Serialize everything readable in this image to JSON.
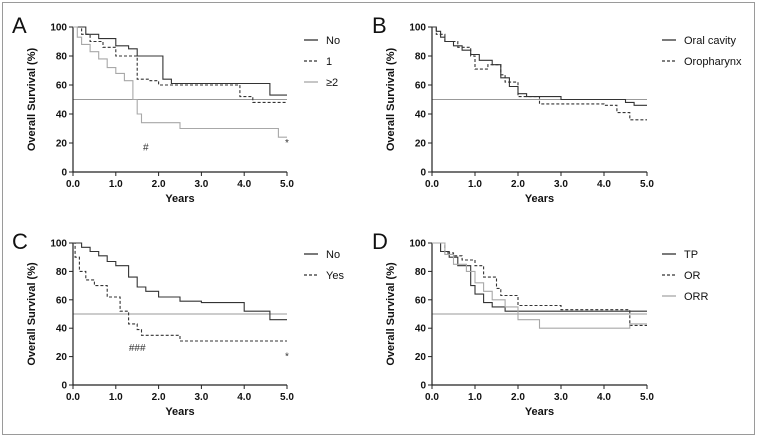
{
  "chart_data": [
    {
      "type": "line",
      "panel": "A",
      "xlabel": "Years",
      "ylabel": "Overall Survival (%)",
      "xlim": [
        0,
        5
      ],
      "ylim": [
        0,
        100
      ],
      "xticks": [
        "0.0",
        "1.0",
        "2.0",
        "3.0",
        "4.0",
        "5.0"
      ],
      "yticks": [
        "0",
        "20",
        "40",
        "60",
        "80",
        "100"
      ],
      "reference_line_y": 50,
      "legend_position": "right",
      "series": [
        {
          "name": "No",
          "color": "#333333",
          "dash": "solid",
          "x": [
            0,
            0.3,
            0.3,
            0.6,
            0.6,
            1.0,
            1.0,
            1.3,
            1.3,
            1.5,
            1.5,
            2.1,
            2.1,
            2.3,
            2.3,
            3.0,
            3.0,
            4.6,
            4.6,
            5.0
          ],
          "y": [
            100,
            100,
            95,
            95,
            92,
            92,
            87,
            87,
            85,
            85,
            80,
            80,
            64,
            64,
            61,
            61,
            61,
            61,
            53,
            53
          ]
        },
        {
          "name": "1",
          "color": "#333333",
          "dash": "dashed",
          "x": [
            0,
            0.2,
            0.2,
            0.4,
            0.4,
            0.7,
            0.7,
            1.0,
            1.0,
            1.5,
            1.5,
            1.8,
            1.8,
            2.0,
            2.0,
            3.0,
            3.0,
            3.9,
            3.9,
            4.2,
            4.2,
            5.0
          ],
          "y": [
            100,
            100,
            95,
            95,
            90,
            90,
            86,
            86,
            80,
            80,
            64,
            64,
            63,
            63,
            60,
            60,
            60,
            60,
            52,
            52,
            48,
            48
          ]
        },
        {
          "name": "≥2",
          "color": "#a8a8a8",
          "dash": "solid",
          "x": [
            0,
            0.1,
            0.1,
            0.2,
            0.2,
            0.4,
            0.4,
            0.6,
            0.6,
            0.8,
            0.8,
            1.0,
            1.0,
            1.2,
            1.2,
            1.4,
            1.4,
            1.5,
            1.5,
            1.6,
            1.6,
            2.5,
            2.5,
            4.8,
            4.8,
            5.0
          ],
          "y": [
            100,
            100,
            93,
            93,
            88,
            88,
            83,
            83,
            78,
            78,
            72,
            72,
            68,
            68,
            63,
            63,
            50,
            50,
            40,
            40,
            34,
            34,
            30,
            30,
            24,
            24
          ]
        }
      ],
      "annotations": [
        {
          "text": "#",
          "x": 1.7,
          "y": 15
        },
        {
          "text": "*",
          "x": 5.0,
          "y": 18
        }
      ]
    },
    {
      "type": "line",
      "panel": "B",
      "xlabel": "Years",
      "ylabel": "Overall Survival (%)",
      "xlim": [
        0,
        5
      ],
      "ylim": [
        0,
        100
      ],
      "xticks": [
        "0.0",
        "1.0",
        "2.0",
        "3.0",
        "4.0",
        "5.0"
      ],
      "yticks": [
        "0",
        "20",
        "40",
        "60",
        "80",
        "100"
      ],
      "reference_line_y": 50,
      "legend_position": "right",
      "series": [
        {
          "name": "Oral cavity",
          "color": "#333333",
          "dash": "solid",
          "x": [
            0,
            0.1,
            0.1,
            0.2,
            0.2,
            0.3,
            0.3,
            0.5,
            0.5,
            0.7,
            0.7,
            0.9,
            0.9,
            1.1,
            1.1,
            1.4,
            1.4,
            1.6,
            1.6,
            1.8,
            1.8,
            2.0,
            2.0,
            2.2,
            2.2,
            3.0,
            3.0,
            4.5,
            4.5,
            4.7,
            4.7,
            5.0
          ],
          "y": [
            100,
            100,
            97,
            97,
            93,
            93,
            90,
            90,
            87,
            87,
            84,
            84,
            81,
            81,
            77,
            77,
            74,
            74,
            65,
            65,
            59,
            59,
            54,
            54,
            52,
            52,
            50,
            50,
            48,
            48,
            46,
            46
          ]
        },
        {
          "name": "Oropharynx",
          "color": "#333333",
          "dash": "dashed",
          "x": [
            0,
            0.1,
            0.1,
            0.3,
            0.3,
            0.6,
            0.6,
            0.9,
            0.9,
            1.0,
            1.0,
            1.3,
            1.3,
            1.6,
            1.6,
            1.7,
            1.7,
            2.0,
            2.0,
            2.5,
            2.5,
            4.0,
            4.0,
            4.3,
            4.3,
            4.6,
            4.6,
            5.0
          ],
          "y": [
            100,
            100,
            95,
            95,
            90,
            90,
            86,
            86,
            80,
            80,
            71,
            71,
            74,
            74,
            67,
            67,
            62,
            62,
            52,
            52,
            47,
            47,
            46,
            46,
            41,
            41,
            36,
            36
          ]
        }
      ]
    },
    {
      "type": "line",
      "panel": "C",
      "xlabel": "Years",
      "ylabel": "Overall Survival (%)",
      "xlim": [
        0,
        5
      ],
      "ylim": [
        0,
        100
      ],
      "xticks": [
        "0.0",
        "1.0",
        "2.0",
        "3.0",
        "4.0",
        "5.0"
      ],
      "yticks": [
        "0",
        "20",
        "40",
        "60",
        "80",
        "100"
      ],
      "reference_line_y": 50,
      "legend_position": "right",
      "series": [
        {
          "name": "No",
          "color": "#333333",
          "dash": "solid",
          "x": [
            0,
            0.2,
            0.2,
            0.4,
            0.4,
            0.6,
            0.6,
            0.8,
            0.8,
            1.0,
            1.0,
            1.3,
            1.3,
            1.5,
            1.5,
            1.7,
            1.7,
            2.0,
            2.0,
            2.5,
            2.5,
            3.0,
            3.0,
            4.0,
            4.0,
            4.6,
            4.6,
            5.0
          ],
          "y": [
            100,
            100,
            97,
            97,
            94,
            94,
            91,
            91,
            87,
            87,
            84,
            84,
            76,
            76,
            69,
            69,
            66,
            66,
            62,
            62,
            59,
            59,
            58,
            58,
            52,
            52,
            46,
            46
          ]
        },
        {
          "name": "Yes",
          "color": "#333333",
          "dash": "dashed",
          "x": [
            0,
            0.05,
            0.05,
            0.15,
            0.15,
            0.3,
            0.3,
            0.5,
            0.5,
            0.8,
            0.8,
            1.1,
            1.1,
            1.3,
            1.3,
            1.5,
            1.5,
            1.6,
            1.6,
            2.5,
            2.5,
            5.0
          ],
          "y": [
            100,
            100,
            90,
            90,
            80,
            80,
            74,
            74,
            70,
            70,
            62,
            62,
            52,
            52,
            43,
            43,
            39,
            39,
            35,
            35,
            31,
            31
          ]
        }
      ],
      "annotations": [
        {
          "text": "###",
          "x": 1.5,
          "y": 24
        },
        {
          "text": "*",
          "x": 5.0,
          "y": 18
        }
      ]
    },
    {
      "type": "line",
      "panel": "D",
      "xlabel": "Years",
      "ylabel": "Overall Survival (%)",
      "xlim": [
        0,
        5
      ],
      "ylim": [
        0,
        100
      ],
      "xticks": [
        "0.0",
        "1.0",
        "2.0",
        "3.0",
        "4.0",
        "5.0"
      ],
      "yticks": [
        "0",
        "20",
        "40",
        "60",
        "80",
        "100"
      ],
      "reference_line_y": 50,
      "legend_position": "right",
      "series": [
        {
          "name": "TP",
          "color": "#333333",
          "dash": "solid",
          "x": [
            0,
            0.2,
            0.2,
            0.4,
            0.4,
            0.6,
            0.6,
            0.9,
            0.9,
            1.0,
            1.0,
            1.2,
            1.2,
            1.4,
            1.4,
            1.7,
            1.7,
            2.0,
            2.0,
            5.0
          ],
          "y": [
            100,
            100,
            94,
            94,
            90,
            90,
            84,
            84,
            70,
            70,
            64,
            64,
            58,
            58,
            55,
            55,
            52,
            52,
            52,
            52
          ]
        },
        {
          "name": "OR",
          "color": "#333333",
          "dash": "dashed",
          "x": [
            0,
            0.3,
            0.3,
            0.5,
            0.5,
            0.7,
            0.7,
            1.0,
            1.0,
            1.2,
            1.2,
            1.5,
            1.5,
            1.6,
            1.6,
            2.0,
            2.0,
            3.0,
            3.0,
            4.6,
            4.6,
            5.0
          ],
          "y": [
            100,
            100,
            93,
            93,
            91,
            91,
            88,
            88,
            84,
            84,
            76,
            76,
            68,
            68,
            63,
            63,
            56,
            56,
            53,
            53,
            42,
            42
          ]
        },
        {
          "name": "ORR",
          "color": "#a8a8a8",
          "dash": "solid",
          "x": [
            0,
            0.3,
            0.3,
            0.5,
            0.5,
            0.8,
            0.8,
            1.0,
            1.0,
            1.2,
            1.2,
            1.4,
            1.4,
            1.7,
            1.7,
            2.0,
            2.0,
            2.5,
            2.5,
            4.6,
            4.6,
            5.0
          ],
          "y": [
            100,
            100,
            92,
            92,
            85,
            85,
            80,
            80,
            72,
            72,
            66,
            66,
            60,
            60,
            55,
            55,
            46,
            46,
            40,
            40,
            43,
            43
          ]
        }
      ]
    }
  ]
}
